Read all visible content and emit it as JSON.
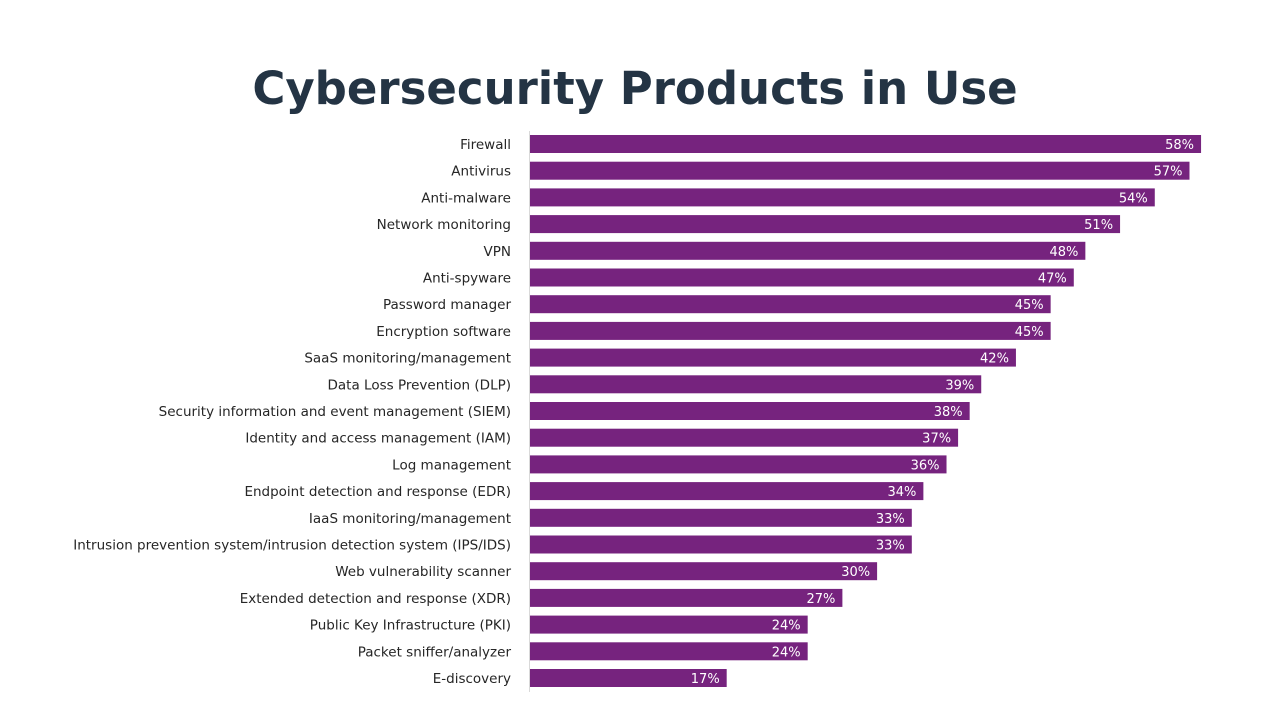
{
  "chart_data": {
    "type": "bar",
    "orientation": "horizontal",
    "title": "Cybersecurity Products in Use",
    "xlabel": "",
    "ylabel": "",
    "xlim": [
      0,
      58
    ],
    "grid": false,
    "legend": "none",
    "bar_color": "#76237E",
    "value_suffix": "%",
    "categories": [
      "Firewall",
      "Antivirus",
      "Anti-malware",
      "Network monitoring",
      "VPN",
      "Anti-spyware",
      "Password manager",
      "Encryption software",
      "SaaS monitoring/management",
      "Data Loss Prevention (DLP)",
      "Security information and event management (SIEM)",
      "Identity and access management (IAM)",
      "Log management",
      "Endpoint detection and response (EDR)",
      "IaaS monitoring/management",
      "Intrusion prevention system/intrusion detection system (IPS/IDS)",
      "Web vulnerability scanner",
      "Extended detection and response (XDR)",
      "Public Key Infrastructure (PKI)",
      "Packet sniffer/analyzer",
      "E-discovery"
    ],
    "values": [
      58,
      57,
      54,
      51,
      48,
      47,
      45,
      45,
      42,
      39,
      38,
      37,
      36,
      34,
      33,
      33,
      30,
      27,
      24,
      24,
      17
    ],
    "data_labels": [
      "58%",
      "57%",
      "54%",
      "51%",
      "48%",
      "47%",
      "45%",
      "45%",
      "42%",
      "39%",
      "38%",
      "37%",
      "36%",
      "34%",
      "33%",
      "33%",
      "30%",
      "27%",
      "24%",
      "24%",
      "17%"
    ]
  }
}
